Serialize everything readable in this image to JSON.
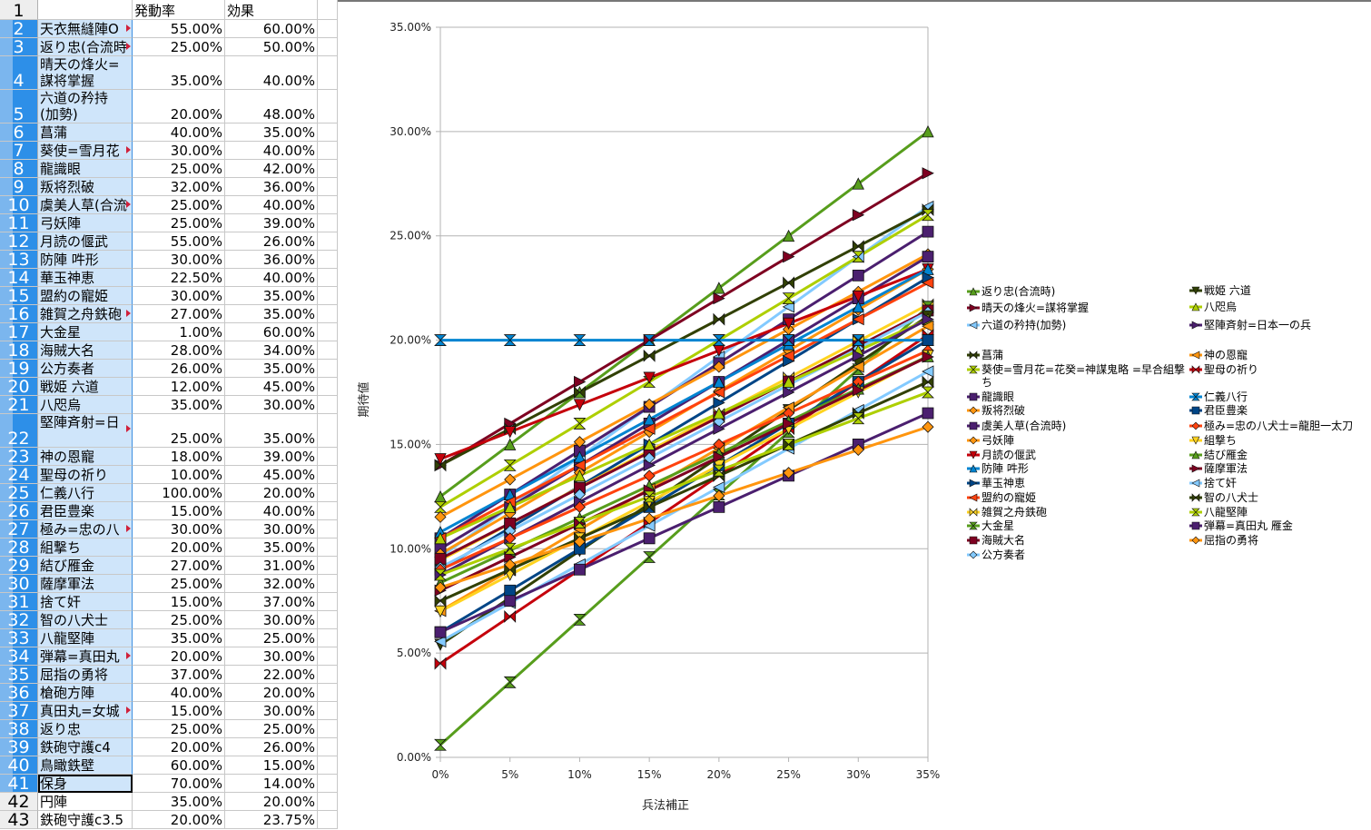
{
  "sheet": {
    "headers": [
      "",
      "発動率",
      "効果"
    ],
    "rows": [
      {
        "n": "1",
        "name": "",
        "rate": "発動率",
        "eff": "効果"
      },
      {
        "n": "2",
        "name": "天衣無縫陣O",
        "rate": "55.00%",
        "eff": "60.00%"
      },
      {
        "n": "3",
        "name": "返り忠(合流時",
        "rate": "25.00%",
        "eff": "50.00%"
      },
      {
        "n": "4",
        "name": "晴天の烽火=\n謀将掌握",
        "rate": "35.00%",
        "eff": "40.00%"
      },
      {
        "n": "5",
        "name": "六道の矜持\n(加勢)",
        "rate": "20.00%",
        "eff": "48.00%"
      },
      {
        "n": "6",
        "name": "菖蒲",
        "rate": "40.00%",
        "eff": "35.00%"
      },
      {
        "n": "7",
        "name": "葵使=雪月花",
        "rate": "30.00%",
        "eff": "40.00%"
      },
      {
        "n": "8",
        "name": "龍識眼",
        "rate": "25.00%",
        "eff": "42.00%"
      },
      {
        "n": "9",
        "name": "叛将烈破",
        "rate": "32.00%",
        "eff": "36.00%"
      },
      {
        "n": "10",
        "name": "虞美人草(合流",
        "rate": "25.00%",
        "eff": "40.00%"
      },
      {
        "n": "11",
        "name": "弓妖陣",
        "rate": "25.00%",
        "eff": "39.00%"
      },
      {
        "n": "12",
        "name": "月読の偃武",
        "rate": "55.00%",
        "eff": "26.00%"
      },
      {
        "n": "13",
        "name": "防陣 吽形",
        "rate": "30.00%",
        "eff": "36.00%"
      },
      {
        "n": "14",
        "name": "華玉神恵",
        "rate": "22.50%",
        "eff": "40.00%"
      },
      {
        "n": "15",
        "name": "盟約の寵姫",
        "rate": "30.00%",
        "eff": "35.00%"
      },
      {
        "n": "16",
        "name": "雑賀之舟鉄砲",
        "rate": "27.00%",
        "eff": "35.00%"
      },
      {
        "n": "17",
        "name": "大金星",
        "rate": "1.00%",
        "eff": "60.00%"
      },
      {
        "n": "18",
        "name": "海賊大名",
        "rate": "28.00%",
        "eff": "34.00%"
      },
      {
        "n": "19",
        "name": "公方奏者",
        "rate": "26.00%",
        "eff": "35.00%"
      },
      {
        "n": "20",
        "name": "戦姫 六道",
        "rate": "12.00%",
        "eff": "45.00%"
      },
      {
        "n": "21",
        "name": "八咫烏",
        "rate": "35.00%",
        "eff": "30.00%"
      },
      {
        "n": "22",
        "name": "堅陣斉射=日",
        "rate": "25.00%",
        "eff": "35.00%"
      },
      {
        "n": "23",
        "name": "神の恩寵",
        "rate": "18.00%",
        "eff": "39.00%"
      },
      {
        "n": "24",
        "name": "聖母の祈り",
        "rate": "10.00%",
        "eff": "45.00%"
      },
      {
        "n": "25",
        "name": "仁義八行",
        "rate": "100.00%",
        "eff": "20.00%"
      },
      {
        "n": "26",
        "name": "君臣豊楽",
        "rate": "15.00%",
        "eff": "40.00%"
      },
      {
        "n": "27",
        "name": "極み=忠の八",
        "rate": "30.00%",
        "eff": "30.00%"
      },
      {
        "n": "28",
        "name": "組撃ち",
        "rate": "20.00%",
        "eff": "35.00%"
      },
      {
        "n": "29",
        "name": "結び雁金",
        "rate": "27.00%",
        "eff": "31.00%"
      },
      {
        "n": "30",
        "name": "薩摩軍法",
        "rate": "25.00%",
        "eff": "32.00%"
      },
      {
        "n": "31",
        "name": "捨て奸",
        "rate": "15.00%",
        "eff": "37.00%"
      },
      {
        "n": "32",
        "name": "智の八犬士",
        "rate": "25.00%",
        "eff": "30.00%"
      },
      {
        "n": "33",
        "name": "八龍堅陣",
        "rate": "35.00%",
        "eff": "25.00%"
      },
      {
        "n": "34",
        "name": "弾幕=真田丸",
        "rate": "20.00%",
        "eff": "30.00%"
      },
      {
        "n": "35",
        "name": "屈指の勇将",
        "rate": "37.00%",
        "eff": "22.00%"
      },
      {
        "n": "36",
        "name": "槍砲方陣",
        "rate": "40.00%",
        "eff": "20.00%"
      },
      {
        "n": "37",
        "name": "真田丸=女城",
        "rate": "15.00%",
        "eff": "30.00%"
      },
      {
        "n": "38",
        "name": "返り忠",
        "rate": "25.00%",
        "eff": "25.00%"
      },
      {
        "n": "39",
        "name": "鉄砲守護c4",
        "rate": "20.00%",
        "eff": "26.00%"
      },
      {
        "n": "40",
        "name": "鳥瞰鉄壁",
        "rate": "60.00%",
        "eff": "15.00%"
      },
      {
        "n": "41",
        "name": "保身",
        "rate": "70.00%",
        "eff": "14.00%"
      },
      {
        "n": "42",
        "name": "円陣",
        "rate": "35.00%",
        "eff": "20.00%"
      },
      {
        "n": "43",
        "name": "鉄砲守護c3.5",
        "rate": "20.00%",
        "eff": "23.75%"
      }
    ]
  },
  "chart_data": {
    "type": "line",
    "title": "",
    "xlabel": "兵法補正",
    "ylabel": "期待値",
    "categories": [
      "0%",
      "5%",
      "10%",
      "15%",
      "20%",
      "25%",
      "30%",
      "35%"
    ],
    "yticks": [
      "0.00%",
      "5.00%",
      "10.00%",
      "15.00%",
      "20.00%",
      "25.00%",
      "30.00%",
      "35.00%"
    ],
    "ylim": [
      0,
      35
    ],
    "y_unit": "%",
    "grid": "horizontal",
    "legend_position": "right",
    "series": [
      {
        "name": "返り忠(合流時)",
        "color": "#579d1c",
        "marker": "tri-up",
        "values": [
          12.5,
          15,
          17.5,
          20,
          22.5,
          25,
          27.5,
          30
        ]
      },
      {
        "name": "晴天の烽火=謀将掌握",
        "color": "#7e0021",
        "marker": "tri-right",
        "values": [
          14,
          16,
          18,
          20,
          22,
          24,
          26,
          28
        ]
      },
      {
        "name": "六道の矜持(加勢)",
        "color": "#83caff",
        "marker": "tri-left",
        "values": [
          9.6,
          12,
          14.4,
          16.8,
          19.2,
          21.6,
          24,
          26.4
        ]
      },
      {
        "name": "菖蒲",
        "color": "#314004",
        "marker": "bowtie",
        "values": [
          14,
          15.75,
          17.5,
          19.25,
          21,
          22.75,
          24.5,
          26.25
        ]
      },
      {
        "name": "葵使=雪月花=花癸=神謀鬼略 =早合組撃ち",
        "color": "#aecf00",
        "marker": "hourglass",
        "values": [
          12,
          14,
          16,
          18,
          20,
          22,
          24,
          26
        ]
      },
      {
        "name": "龍識眼",
        "color": "#4b1f6f",
        "marker": "square",
        "values": [
          10.5,
          12.6,
          14.7,
          16.8,
          18.9,
          21,
          23.1,
          25.2
        ]
      },
      {
        "name": "叛将烈破",
        "color": "#ff950e",
        "marker": "diamond",
        "values": [
          11.52,
          13.32,
          15.12,
          16.92,
          18.72,
          20.52,
          22.32,
          24.12
        ]
      },
      {
        "name": "虞美人草(合流時)",
        "color": "#4b1f6f",
        "marker": "square",
        "values": [
          10,
          12,
          14,
          16,
          18,
          20,
          22,
          24
        ]
      },
      {
        "name": "弓妖陣",
        "color": "#ff950e",
        "marker": "diamond",
        "values": [
          9.75,
          11.7,
          13.65,
          15.6,
          17.55,
          19.5,
          21.45,
          23.4
        ]
      },
      {
        "name": "月読の偃武",
        "color": "#c5000b",
        "marker": "tri-down",
        "values": [
          14.3,
          15.6,
          16.9,
          18.2,
          19.5,
          20.8,
          22.1,
          23.4
        ]
      },
      {
        "name": "防陣 吽形",
        "color": "#0084d1",
        "marker": "tri-up",
        "values": [
          10.8,
          12.6,
          14.4,
          16.2,
          18,
          19.8,
          21.6,
          23.4
        ]
      },
      {
        "name": "華玉神恵",
        "color": "#004586",
        "marker": "tri-right",
        "values": [
          9,
          11,
          13,
          15,
          17,
          19,
          21,
          23
        ]
      },
      {
        "name": "盟約の寵姫",
        "color": "#ff420e",
        "marker": "tri-left",
        "values": [
          10.5,
          12.25,
          14,
          15.75,
          17.5,
          19.25,
          21,
          22.75
        ]
      },
      {
        "name": "雑賀之舟鉄砲",
        "color": "#ffd320",
        "marker": "bowtie",
        "values": [
          9.45,
          11.2,
          12.95,
          14.7,
          16.45,
          18.2,
          19.95,
          21.7
        ]
      },
      {
        "name": "大金星",
        "color": "#579d1c",
        "marker": "hourglass",
        "values": [
          0.6,
          3.6,
          6.6,
          9.6,
          12.6,
          15.6,
          18.6,
          21.6
        ]
      },
      {
        "name": "海賊大名",
        "color": "#7e0021",
        "marker": "square",
        "values": [
          9.52,
          11.22,
          12.92,
          14.62,
          16.32,
          18.02,
          19.72,
          21.42
        ]
      },
      {
        "name": "公方奏者",
        "color": "#83caff",
        "marker": "diamond",
        "values": [
          9.1,
          10.85,
          12.6,
          14.35,
          16.1,
          17.85,
          19.6,
          21.35
        ]
      },
      {
        "name": "戦姫 六道",
        "color": "#314004",
        "marker": "tri-down",
        "values": [
          5.4,
          7.65,
          9.9,
          12.15,
          14.4,
          16.65,
          18.9,
          21.15
        ]
      },
      {
        "name": "八咫烏",
        "color": "#aecf00",
        "marker": "tri-up",
        "values": [
          10.5,
          12,
          13.5,
          15,
          16.5,
          18,
          19.5,
          21
        ]
      },
      {
        "name": "堅陣斉射=日本一の兵",
        "color": "#4b1f6f",
        "marker": "tri-right",
        "values": [
          8.75,
          10.5,
          12.25,
          14,
          15.75,
          17.5,
          19.25,
          21
        ]
      },
      {
        "name": "神の恩寵",
        "color": "#ff950e",
        "marker": "tri-left",
        "values": [
          7.02,
          8.97,
          10.92,
          12.87,
          14.82,
          16.77,
          18.72,
          20.67
        ]
      },
      {
        "name": "聖母の祈り",
        "color": "#c5000b",
        "marker": "bowtie",
        "values": [
          4.5,
          6.75,
          9,
          11.25,
          13.5,
          15.75,
          18,
          20.25
        ]
      },
      {
        "name": "仁義八行",
        "color": "#0084d1",
        "marker": "hourglass",
        "values": [
          20,
          20,
          20,
          20,
          20,
          20,
          20,
          20
        ]
      },
      {
        "name": "君臣豊楽",
        "color": "#004586",
        "marker": "square",
        "values": [
          6,
          8,
          10,
          12,
          14,
          16,
          18,
          20
        ]
      },
      {
        "name": "極み=忠の八犬士=龍胆一太刀",
        "color": "#ff420e",
        "marker": "diamond",
        "values": [
          9,
          10.5,
          12,
          13.5,
          15,
          16.5,
          18,
          19.5
        ]
      },
      {
        "name": "組撃ち",
        "color": "#ffd320",
        "marker": "tri-down",
        "values": [
          7,
          8.75,
          10.5,
          12.25,
          14,
          15.75,
          17.5,
          19.25
        ]
      },
      {
        "name": "結び雁金",
        "color": "#579d1c",
        "marker": "tri-up",
        "values": [
          8.37,
          9.92,
          11.47,
          13.02,
          14.57,
          16.12,
          17.67,
          19.22
        ]
      },
      {
        "name": "薩摩軍法",
        "color": "#7e0021",
        "marker": "tri-right",
        "values": [
          8,
          9.6,
          11.2,
          12.8,
          14.4,
          16,
          17.6,
          19.2
        ]
      },
      {
        "name": "捨て奸",
        "color": "#83caff",
        "marker": "tri-left",
        "values": [
          5.55,
          7.4,
          9.25,
          11.1,
          12.95,
          14.8,
          16.65,
          18.5
        ]
      },
      {
        "name": "智の八犬士",
        "color": "#314004",
        "marker": "bowtie",
        "values": [
          7.5,
          9,
          10.5,
          12,
          13.5,
          15,
          16.5,
          18
        ]
      },
      {
        "name": "八龍堅陣",
        "color": "#aecf00",
        "marker": "hourglass",
        "values": [
          8.75,
          10,
          11.25,
          12.5,
          13.75,
          15,
          16.25,
          17.5
        ]
      },
      {
        "name": "弾幕=真田丸 雁金",
        "color": "#4b1f6f",
        "marker": "square",
        "values": [
          6,
          7.5,
          9,
          10.5,
          12,
          13.5,
          15,
          16.5
        ]
      },
      {
        "name": "屈指の勇将",
        "color": "#ff950e",
        "marker": "diamond",
        "values": [
          8.14,
          9.24,
          10.34,
          11.44,
          12.54,
          13.64,
          14.74,
          15.84
        ]
      }
    ]
  }
}
